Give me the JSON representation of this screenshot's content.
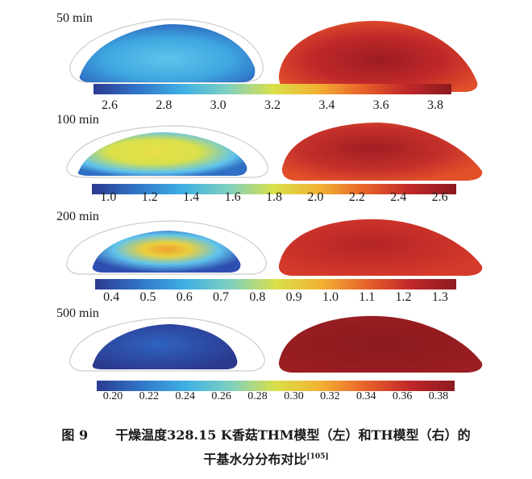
{
  "colormap": [
    "#2b3a8f",
    "#3176c9",
    "#3fb0e3",
    "#7fd0c0",
    "#d9e04a",
    "#f2b233",
    "#e8632a",
    "#c0282a",
    "#8c1a1f"
  ],
  "panels": [
    {
      "time": "50 min",
      "ticks": [
        "2.6",
        "2.8",
        "3.0",
        "3.2",
        "3.4",
        "3.6",
        "3.8"
      ]
    },
    {
      "time": "100 min",
      "ticks": [
        "1.0",
        "1.2",
        "1.4",
        "1.6",
        "1.8",
        "2.0",
        "2.2",
        "2.4",
        "2.6"
      ]
    },
    {
      "time": "200 min",
      "ticks": [
        "0.4",
        "0.5",
        "0.6",
        "0.7",
        "0.8",
        "0.9",
        "1.0",
        "1.1",
        "1.2",
        "1.3"
      ]
    },
    {
      "time": "500 min",
      "ticks": [
        "0.20",
        "0.22",
        "0.24",
        "0.26",
        "0.28",
        "0.30",
        "0.32",
        "0.34",
        "0.36",
        "0.38"
      ]
    }
  ],
  "caption": {
    "figure_number": "图 9",
    "line1": "干燥温度328.15 K香菇THM模型（左）和TH模型（右）的",
    "line2": "干基水分分布对比",
    "ref": "[105]"
  }
}
